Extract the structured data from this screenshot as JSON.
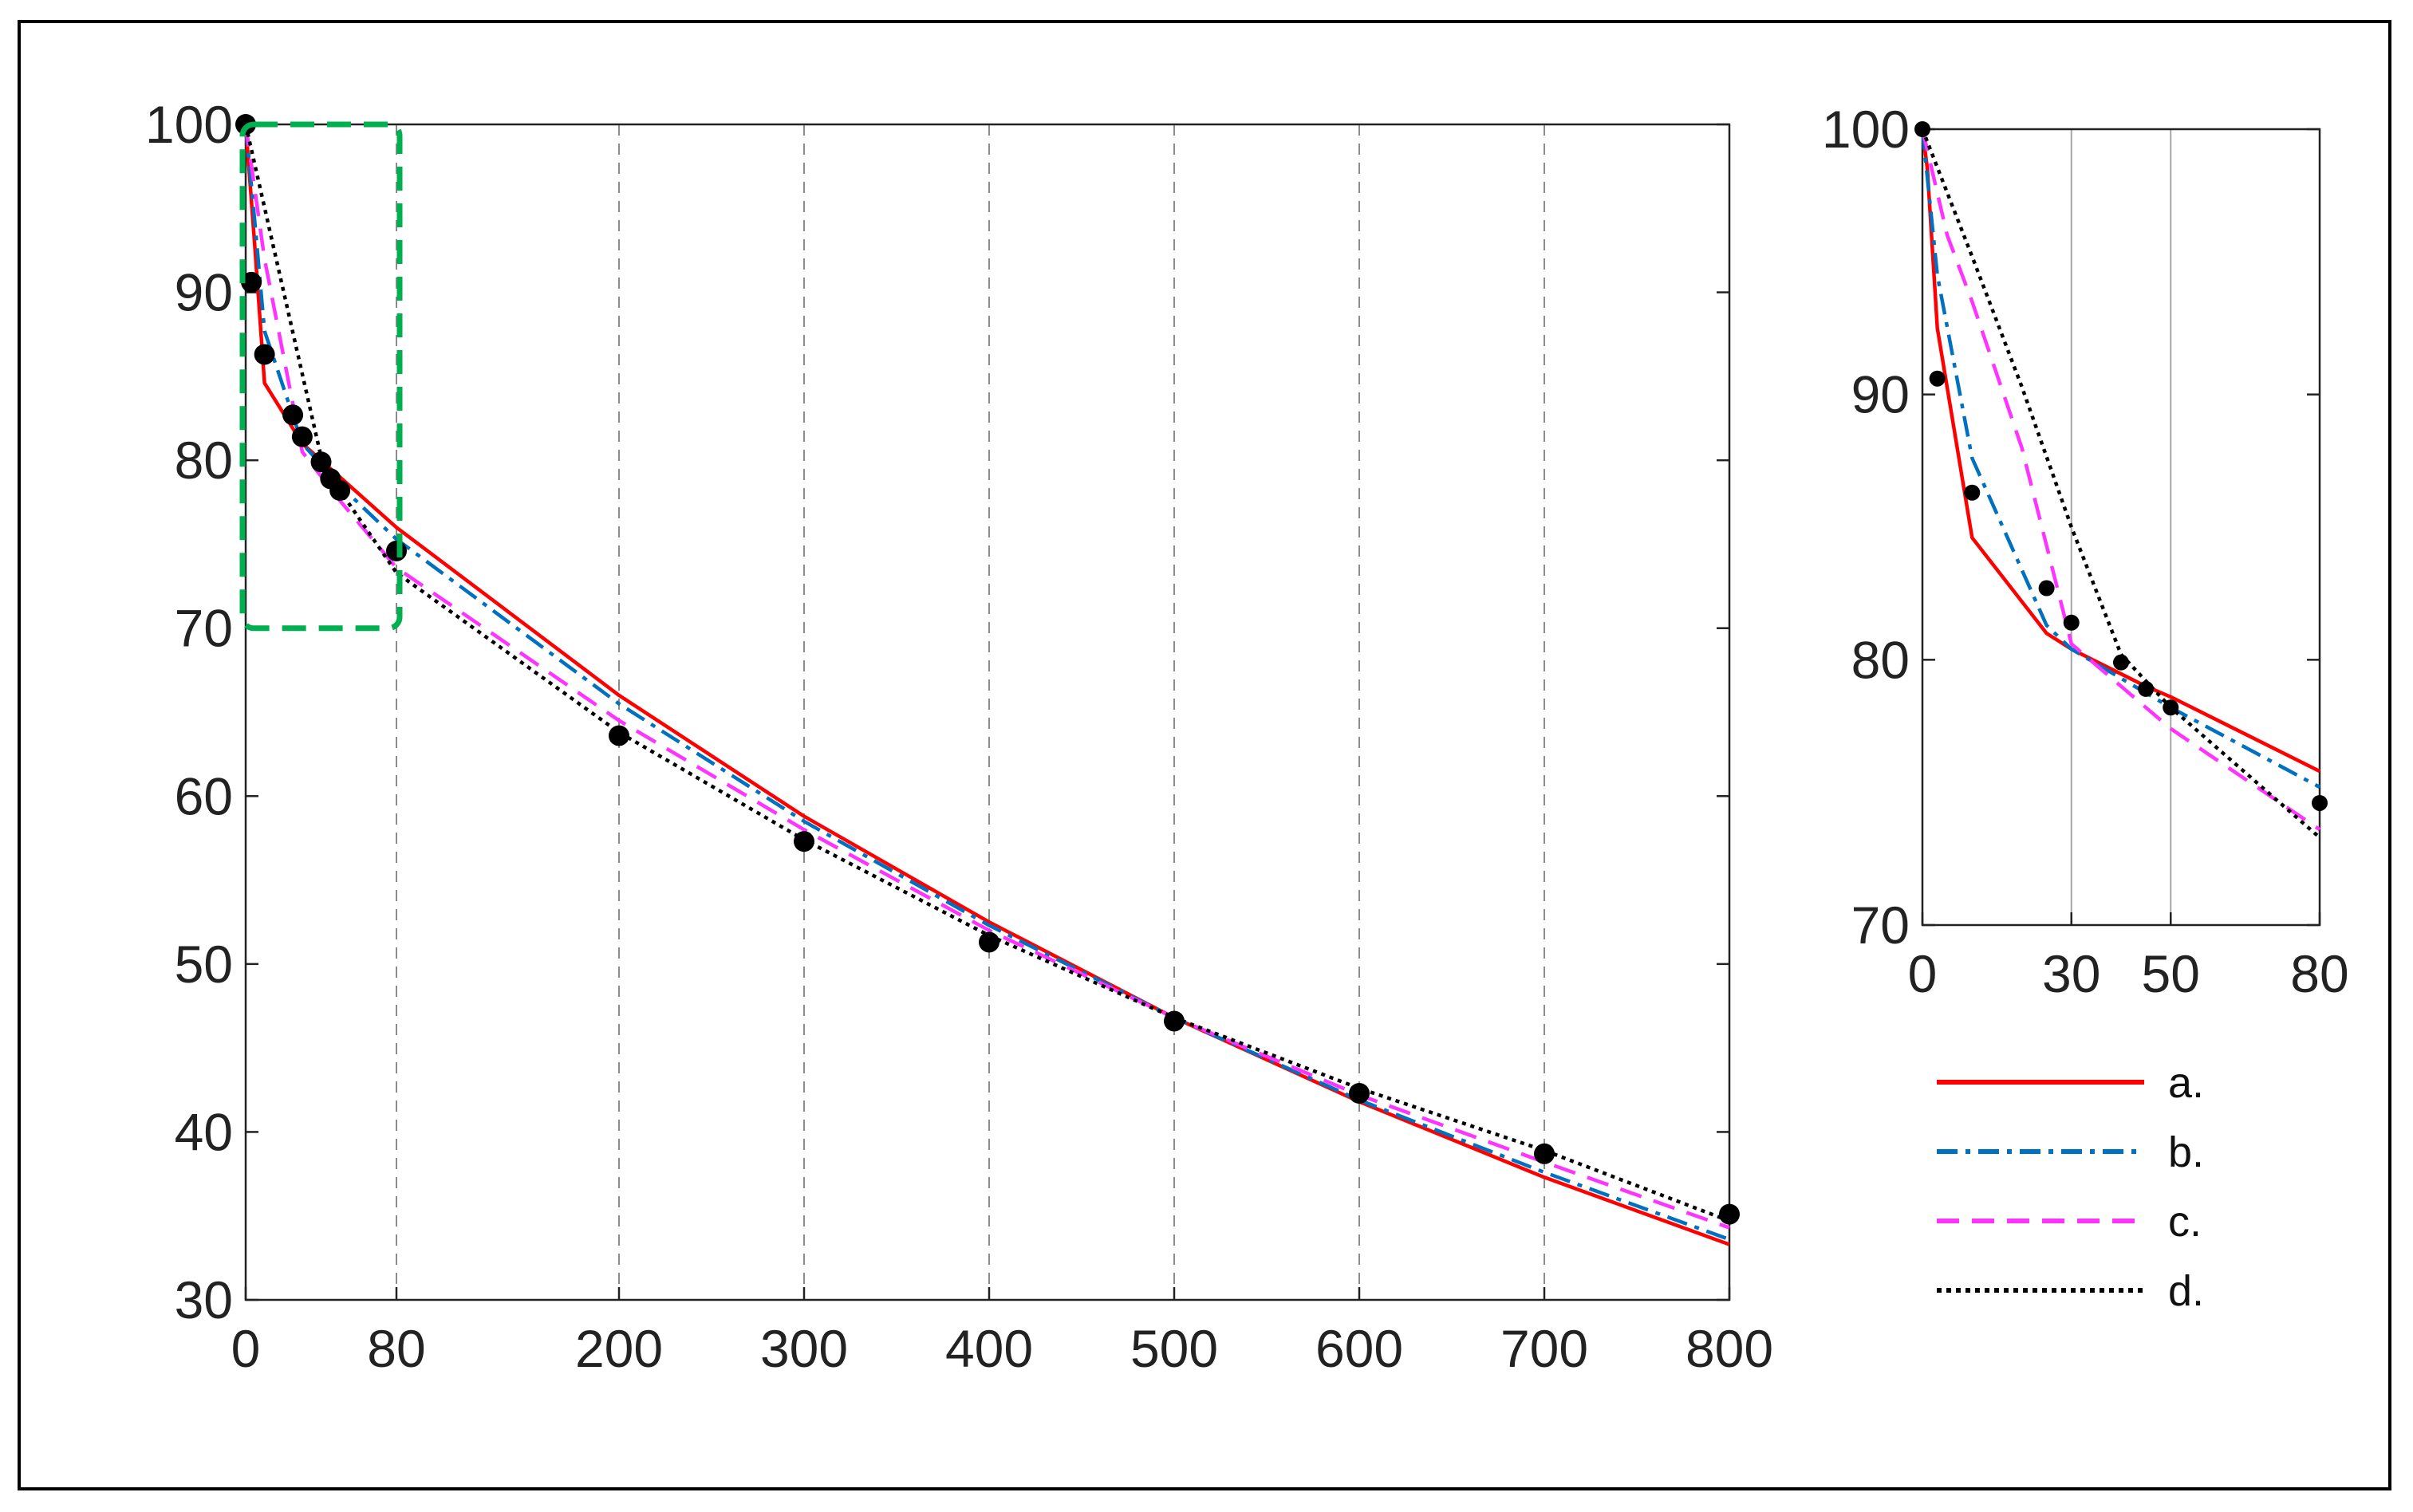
{
  "chart_data": [
    {
      "type": "line",
      "title": "",
      "xlabel": "",
      "ylabel": "",
      "xlim": [
        0,
        800
      ],
      "ylim": [
        30,
        100
      ],
      "x_ticks": [
        0,
        80,
        200,
        300,
        400,
        500,
        600,
        700,
        800
      ],
      "y_ticks": [
        30,
        40,
        50,
        60,
        70,
        80,
        90,
        100
      ],
      "grid": "vertical dashed",
      "zoom_box": {
        "x": [
          0,
          80
        ],
        "y": [
          70,
          100
        ],
        "color": "#00b050"
      },
      "series": [
        {
          "name": "a.",
          "color": "#ff0000",
          "style": "solid",
          "x": [
            0,
            5,
            10,
            30,
            50,
            80,
            200,
            300,
            400,
            500,
            600,
            700,
            800
          ],
          "y": [
            100,
            92.5,
            84.6,
            81,
            79,
            76,
            66,
            58.8,
            52.5,
            46.8,
            41.8,
            37.3,
            33.3
          ]
        },
        {
          "name": "b.",
          "color": "#0070c0",
          "style": "dashdot",
          "x": [
            0,
            5,
            10,
            30,
            50,
            80,
            200,
            300,
            400,
            500,
            600,
            700,
            800
          ],
          "y": [
            100,
            94,
            87.7,
            81,
            78.5,
            75.3,
            65.5,
            58.5,
            52.3,
            46.8,
            41.9,
            37.6,
            33.6
          ]
        },
        {
          "name": "c.",
          "color": "#ff33ff",
          "style": "dashed",
          "x": [
            0,
            10,
            30,
            50,
            80,
            200,
            300,
            400,
            500,
            600,
            700,
            800
          ],
          "y": [
            100,
            92,
            80.5,
            77.6,
            73.6,
            64.5,
            58,
            52,
            46.8,
            42.2,
            38.2,
            34.3
          ]
        },
        {
          "name": "d.",
          "color": "#000000",
          "style": "dotted",
          "x": [
            0,
            40,
            50,
            80,
            200,
            300,
            400,
            500,
            600,
            700,
            800
          ],
          "y": [
            100,
            80.2,
            78.2,
            73.3,
            63.8,
            57.4,
            51.7,
            46.8,
            42.6,
            38.9,
            34.7
          ]
        }
      ],
      "points": {
        "x": [
          0,
          3,
          10,
          25,
          30,
          40,
          45,
          50,
          80,
          200,
          300,
          400,
          500,
          600,
          700,
          800
        ],
        "y": [
          100,
          90.6,
          86.3,
          82.7,
          81.4,
          79.9,
          78.9,
          78.2,
          74.6,
          63.6,
          57.3,
          51.3,
          46.6,
          42.3,
          38.7,
          35.1
        ]
      }
    },
    {
      "type": "line",
      "title": "",
      "xlabel": "",
      "ylabel": "",
      "xlim": [
        0,
        80
      ],
      "ylim": [
        70,
        100
      ],
      "x_ticks": [
        0,
        30,
        50,
        80
      ],
      "y_ticks": [
        70,
        80,
        90,
        100
      ],
      "grid": "vertical solid",
      "series": [
        {
          "name": "a.",
          "color": "#ff0000",
          "style": "solid",
          "x": [
            0,
            1,
            3,
            10,
            25,
            30,
            45,
            50,
            80
          ],
          "y": [
            100,
            98.5,
            92.5,
            84.6,
            81,
            80.4,
            79,
            78.6,
            75.8
          ]
        },
        {
          "name": "b.",
          "color": "#0070c0",
          "style": "dashdot",
          "x": [
            0,
            3,
            10,
            25,
            30,
            50,
            80
          ],
          "y": [
            100,
            94.5,
            87.6,
            81.3,
            80.4,
            78.2,
            75.2
          ]
        },
        {
          "name": "c.",
          "color": "#ff33ff",
          "style": "dashed",
          "x": [
            0,
            5,
            10,
            20,
            30,
            50,
            80
          ],
          "y": [
            100,
            96,
            93.5,
            88,
            80.6,
            77.4,
            73.6
          ]
        },
        {
          "name": "d.",
          "color": "#000000",
          "style": "dotted",
          "x": [
            0,
            10,
            20,
            30,
            40,
            50,
            80
          ],
          "y": [
            100,
            95.2,
            90.3,
            85,
            80.2,
            78.2,
            73.3
          ]
        }
      ],
      "points": {
        "x": [
          0,
          3,
          10,
          25,
          30,
          40,
          45,
          50,
          80
        ],
        "y": [
          100,
          90.6,
          86.3,
          82.7,
          81.4,
          79.9,
          78.9,
          78.2,
          74.6
        ]
      }
    }
  ],
  "legend": {
    "placement": "bottom-right",
    "items": [
      {
        "label": "a.",
        "color": "#ff0000",
        "style": "solid"
      },
      {
        "label": "b.",
        "color": "#0070c0",
        "style": "dashdot"
      },
      {
        "label": "c.",
        "color": "#ff33ff",
        "style": "dashed"
      },
      {
        "label": "d.",
        "color": "#000000",
        "style": "dotted"
      }
    ]
  }
}
